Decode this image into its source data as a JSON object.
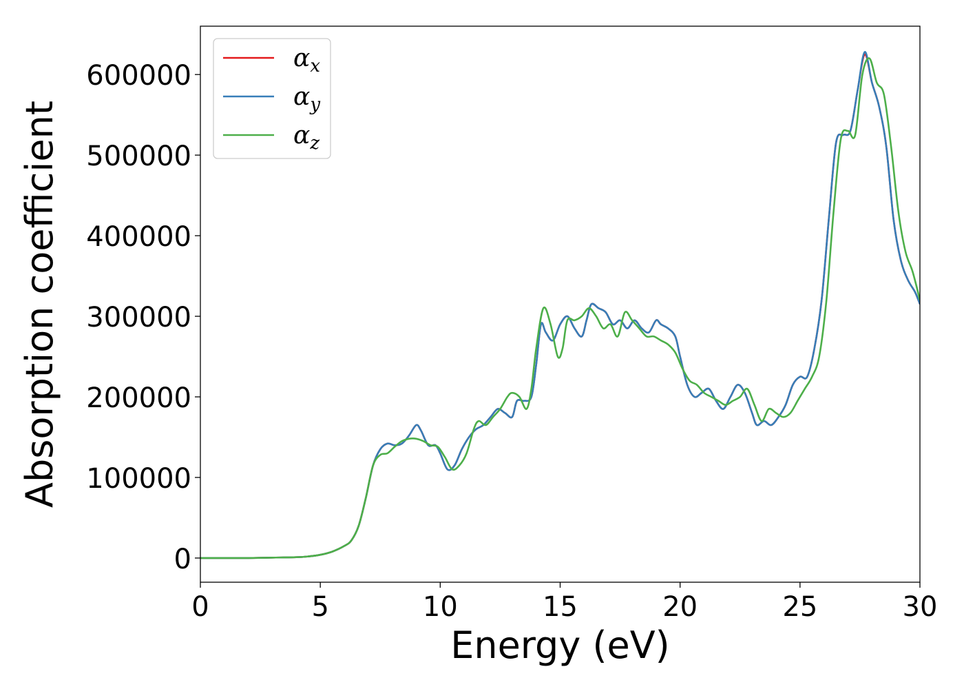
{
  "colors": {
    "alpha_x": "#e41a1c",
    "alpha_y": "#377eb8",
    "alpha_z": "#4daf4a"
  },
  "chart_data": {
    "type": "line",
    "xlabel": "Energy (eV)",
    "ylabel": "Absorption coefficient",
    "xlim": [
      0,
      30
    ],
    "ylim": [
      -30000,
      660000
    ],
    "xticks": [
      0,
      5,
      10,
      15,
      20,
      25,
      30
    ],
    "yticks": [
      0,
      100000,
      200000,
      300000,
      400000,
      500000,
      600000
    ],
    "legend": {
      "placement": "top-left"
    },
    "grid": false,
    "series": [
      {
        "name": "α_x",
        "name_base": "α",
        "name_sub": "x",
        "color": "#e41a1c",
        "x": [
          0,
          1,
          2,
          3,
          4,
          4.5,
          5,
          5.5,
          6,
          6.3,
          6.6,
          6.9,
          7.2,
          7.5,
          7.8,
          8.1,
          8.4,
          8.7,
          9.0,
          9.2,
          9.5,
          9.8,
          10.0,
          10.3,
          10.6,
          10.9,
          11.2,
          11.5,
          11.8,
          12.1,
          12.4,
          12.7,
          13.0,
          13.2,
          13.5,
          13.8,
          14.0,
          14.2,
          14.4,
          14.7,
          15.0,
          15.3,
          15.6,
          15.9,
          16.1,
          16.3,
          16.6,
          16.9,
          17.2,
          17.5,
          17.8,
          18.1,
          18.4,
          18.7,
          19.0,
          19.2,
          19.5,
          19.8,
          20.0,
          20.3,
          20.6,
          20.9,
          21.2,
          21.5,
          21.8,
          22.1,
          22.4,
          22.7,
          23.0,
          23.2,
          23.5,
          23.8,
          24.1,
          24.4,
          24.7,
          25.0,
          25.3,
          25.6,
          25.9,
          26.2,
          26.5,
          26.8,
          27.1,
          27.4,
          27.7,
          28.0,
          28.3,
          28.6,
          28.9,
          29.2,
          29.5,
          29.8,
          30.0
        ],
        "y": [
          0,
          0,
          0,
          500,
          1000,
          2000,
          4000,
          8000,
          15000,
          22000,
          40000,
          75000,
          115000,
          135000,
          142000,
          140000,
          142000,
          152000,
          165000,
          158000,
          140000,
          140000,
          130000,
          110000,
          115000,
          135000,
          150000,
          160000,
          165000,
          175000,
          185000,
          180000,
          175000,
          195000,
          195000,
          200000,
          240000,
          290000,
          280000,
          270000,
          290000,
          300000,
          285000,
          275000,
          295000,
          315000,
          310000,
          305000,
          290000,
          295000,
          285000,
          295000,
          285000,
          280000,
          295000,
          290000,
          285000,
          275000,
          250000,
          215000,
          200000,
          205000,
          210000,
          195000,
          185000,
          200000,
          215000,
          205000,
          180000,
          165000,
          170000,
          165000,
          175000,
          190000,
          215000,
          225000,
          225000,
          260000,
          320000,
          420000,
          515000,
          525000,
          530000,
          580000,
          625000,
          590000,
          560000,
          510000,
          420000,
          370000,
          345000,
          330000,
          315000
        ]
      },
      {
        "name": "α_y",
        "name_base": "α",
        "name_sub": "y",
        "color": "#377eb8",
        "x": [
          0,
          1,
          2,
          3,
          4,
          4.5,
          5,
          5.5,
          6,
          6.3,
          6.6,
          6.9,
          7.2,
          7.5,
          7.8,
          8.1,
          8.4,
          8.7,
          9.0,
          9.2,
          9.5,
          9.8,
          10.0,
          10.3,
          10.6,
          10.9,
          11.2,
          11.5,
          11.8,
          12.1,
          12.4,
          12.7,
          13.0,
          13.2,
          13.5,
          13.8,
          14.0,
          14.2,
          14.4,
          14.7,
          15.0,
          15.3,
          15.6,
          15.9,
          16.1,
          16.3,
          16.6,
          16.9,
          17.2,
          17.5,
          17.8,
          18.1,
          18.4,
          18.7,
          19.0,
          19.2,
          19.5,
          19.8,
          20.0,
          20.3,
          20.6,
          20.9,
          21.2,
          21.5,
          21.8,
          22.1,
          22.4,
          22.7,
          23.0,
          23.2,
          23.5,
          23.8,
          24.1,
          24.4,
          24.7,
          25.0,
          25.3,
          25.6,
          25.9,
          26.2,
          26.5,
          26.8,
          27.1,
          27.4,
          27.7,
          28.0,
          28.3,
          28.6,
          28.9,
          29.2,
          29.5,
          29.8,
          30.0
        ],
        "y": [
          0,
          0,
          0,
          500,
          1000,
          2000,
          4000,
          8000,
          15000,
          22000,
          40000,
          75000,
          115000,
          135000,
          142000,
          140000,
          142000,
          152000,
          165000,
          158000,
          140000,
          140000,
          130000,
          110000,
          115000,
          135000,
          150000,
          160000,
          165000,
          175000,
          185000,
          180000,
          175000,
          195000,
          195000,
          200000,
          240000,
          290000,
          280000,
          270000,
          290000,
          300000,
          285000,
          275000,
          295000,
          315000,
          310000,
          305000,
          290000,
          295000,
          285000,
          295000,
          285000,
          280000,
          295000,
          290000,
          285000,
          275000,
          250000,
          215000,
          200000,
          205000,
          210000,
          195000,
          185000,
          200000,
          215000,
          205000,
          180000,
          165000,
          170000,
          165000,
          175000,
          190000,
          215000,
          225000,
          225000,
          260000,
          320000,
          420000,
          515000,
          525000,
          530000,
          580000,
          628000,
          590000,
          560000,
          510000,
          420000,
          370000,
          345000,
          330000,
          315000
        ]
      },
      {
        "name": "α_z",
        "name_base": "α",
        "name_sub": "z",
        "color": "#4daf4a",
        "x": [
          0,
          1,
          2,
          3,
          4,
          4.5,
          5,
          5.5,
          6,
          6.3,
          6.6,
          6.9,
          7.2,
          7.5,
          7.8,
          8.1,
          8.4,
          8.7,
          9.0,
          9.3,
          9.6,
          9.9,
          10.2,
          10.5,
          10.8,
          11.1,
          11.4,
          11.6,
          11.9,
          12.2,
          12.5,
          12.8,
          13.0,
          13.3,
          13.6,
          13.8,
          14.0,
          14.3,
          14.6,
          14.9,
          15.1,
          15.3,
          15.6,
          15.9,
          16.2,
          16.5,
          16.8,
          17.1,
          17.4,
          17.7,
          18.0,
          18.3,
          18.6,
          18.9,
          19.2,
          19.5,
          19.8,
          20.1,
          20.4,
          20.7,
          21.0,
          21.3,
          21.6,
          21.9,
          22.2,
          22.5,
          22.8,
          23.1,
          23.4,
          23.7,
          24.0,
          24.3,
          24.6,
          24.9,
          25.2,
          25.5,
          25.8,
          26.1,
          26.4,
          26.7,
          27.0,
          27.3,
          27.6,
          27.9,
          28.2,
          28.5,
          28.8,
          29.1,
          29.4,
          29.7,
          30.0
        ],
        "y": [
          0,
          0,
          0,
          500,
          1000,
          2000,
          4000,
          8000,
          15000,
          22000,
          40000,
          75000,
          115000,
          128000,
          130000,
          138000,
          145000,
          148000,
          148000,
          145000,
          140000,
          138000,
          125000,
          110000,
          115000,
          130000,
          160000,
          170000,
          165000,
          175000,
          185000,
          200000,
          205000,
          200000,
          185000,
          210000,
          260000,
          310000,
          290000,
          250000,
          260000,
          295000,
          295000,
          300000,
          310000,
          300000,
          285000,
          290000,
          275000,
          305000,
          295000,
          285000,
          275000,
          275000,
          270000,
          265000,
          255000,
          235000,
          220000,
          215000,
          205000,
          200000,
          195000,
          190000,
          195000,
          200000,
          210000,
          190000,
          170000,
          185000,
          180000,
          175000,
          180000,
          195000,
          210000,
          225000,
          250000,
          320000,
          430000,
          520000,
          530000,
          525000,
          600000,
          620000,
          590000,
          575000,
          510000,
          430000,
          380000,
          355000,
          320000
        ]
      }
    ]
  }
}
